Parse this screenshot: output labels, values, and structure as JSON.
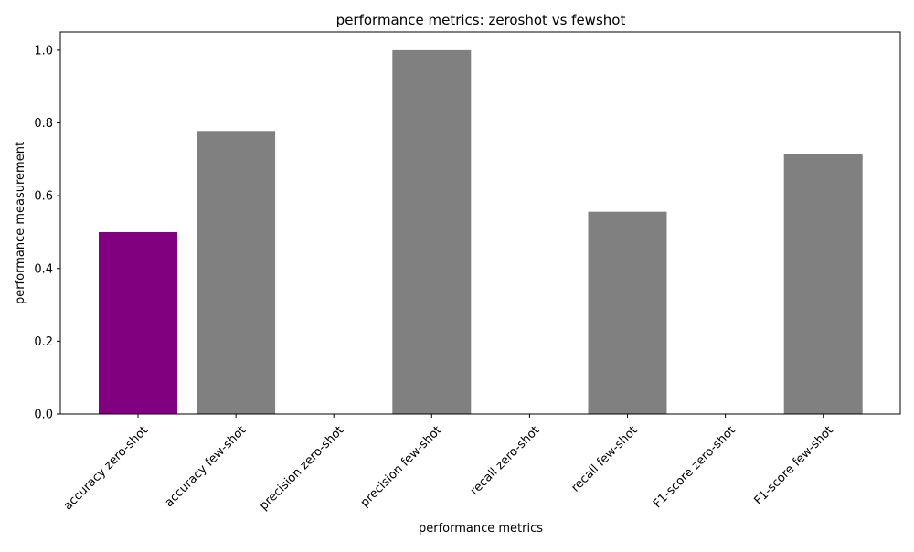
{
  "chart_data": {
    "type": "bar",
    "title": "performance metrics: zeroshot vs fewshot",
    "xlabel": "performance metrics",
    "ylabel": "performance measurement",
    "categories": [
      "accuracy zero-shot",
      "accuracy few-shot",
      "precision zero-shot",
      "precision few-shot",
      "recall zero-shot",
      "recall few-shot",
      "F1-score zero-shot",
      "F1-score few-shot"
    ],
    "values": [
      0.5,
      0.778,
      0.0,
      1.0,
      0.0,
      0.556,
      0.0,
      0.714
    ],
    "bar_colors": [
      "#800080",
      "#808080",
      "#808080",
      "#808080",
      "#808080",
      "#808080",
      "#808080",
      "#808080"
    ],
    "ylim": [
      0,
      1.05
    ],
    "yticks": [
      0.0,
      0.2,
      0.4,
      0.6,
      0.8,
      1.0
    ],
    "ytick_labels": [
      "0.0",
      "0.2",
      "0.4",
      "0.6",
      "0.8",
      "1.0"
    ],
    "grid": false,
    "legend": "none"
  }
}
